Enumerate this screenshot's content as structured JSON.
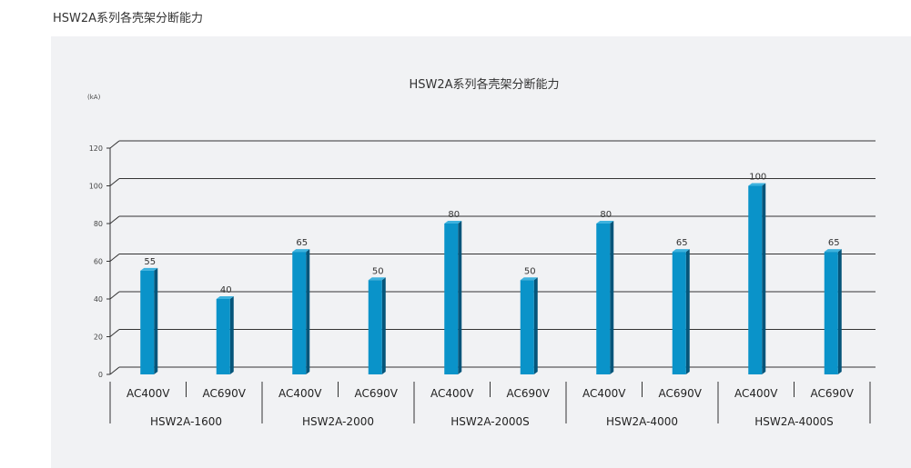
{
  "page": {
    "heading": "HSW2A系列各壳架分断能力"
  },
  "colors": {
    "bar_front": "#0a93c9",
    "bar_side": "#05557a",
    "bar_top": "#3db2de",
    "grid": "#333333"
  },
  "chart_data": {
    "type": "bar",
    "title": "HSW2A系列各壳架分断能力",
    "ylabel": "(kA)",
    "ylim": [
      0,
      120
    ],
    "yticks": [
      "0",
      "20",
      "40",
      "60",
      "80",
      "100",
      "120"
    ],
    "grid": true,
    "groups": [
      {
        "name": "HSW2A-1600",
        "categories": [
          "AC400V",
          "AC690V"
        ],
        "values": [
          55,
          40
        ]
      },
      {
        "name": "HSW2A-2000",
        "categories": [
          "AC400V",
          "AC690V"
        ],
        "values": [
          65,
          50
        ]
      },
      {
        "name": "HSW2A-2000S",
        "categories": [
          "AC400V",
          "AC690V"
        ],
        "values": [
          80,
          50
        ]
      },
      {
        "name": "HSW2A-4000",
        "categories": [
          "AC400V",
          "AC690V"
        ],
        "values": [
          80,
          65
        ]
      },
      {
        "name": "HSW2A-4000S",
        "categories": [
          "AC400V",
          "AC690V"
        ],
        "values": [
          100,
          65
        ]
      }
    ],
    "value_labels": [
      "55",
      "40",
      "65",
      "50",
      "80",
      "50",
      "80",
      "65",
      "100",
      "65"
    ]
  }
}
